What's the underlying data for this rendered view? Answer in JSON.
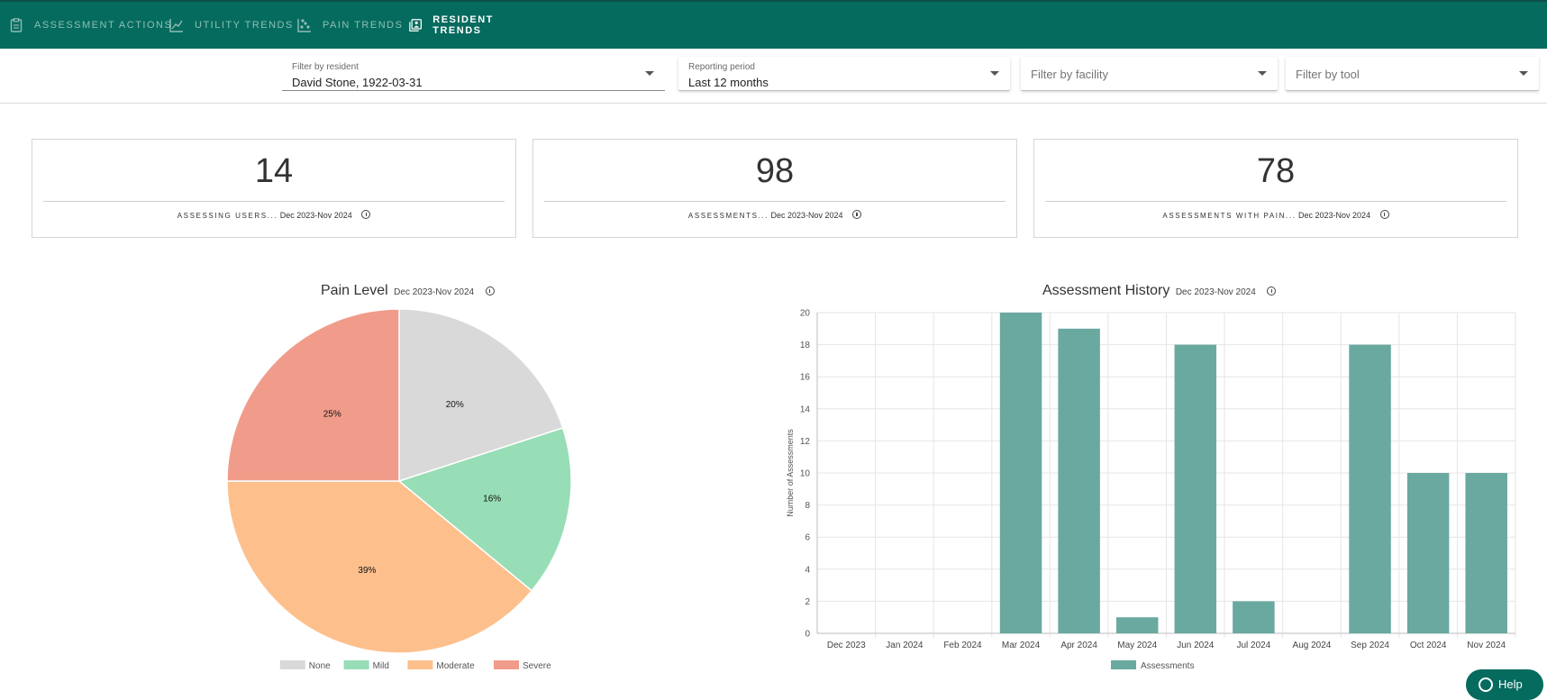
{
  "nav": {
    "tabs": [
      {
        "label": "Assessment Actions",
        "icon": "clipboard-icon"
      },
      {
        "label": "Utility Trends",
        "icon": "line-chart-icon"
      },
      {
        "label": "Pain Trends",
        "icon": "scatter-chart-icon"
      },
      {
        "label": "Resident Trends",
        "icon": "resident-portrait-icon",
        "active": true
      }
    ]
  },
  "filters": {
    "resident": {
      "label": "Filter by resident",
      "value": "David Stone, 1922-03-31"
    },
    "period": {
      "label": "Reporting period",
      "value": "Last 12 months"
    },
    "facility": {
      "placeholder": "Filter by facility"
    },
    "tool": {
      "placeholder": "Filter by tool"
    }
  },
  "stats": [
    {
      "value": "14",
      "label": "Assessing users...",
      "range": "Dec 2023-Nov 2024"
    },
    {
      "value": "98",
      "label": "Assessments...",
      "range": "Dec 2023-Nov 2024"
    },
    {
      "value": "78",
      "label": "Assessments with pain...",
      "range": "Dec 2023-Nov 2024"
    }
  ],
  "pain_chart": {
    "title": "Pain Level",
    "range": "Dec 2023-Nov 2024"
  },
  "history_chart": {
    "title": "Assessment History",
    "range": "Dec 2023-Nov 2024"
  },
  "help": {
    "label": "Help"
  },
  "chart_data": [
    {
      "type": "pie",
      "title": "Pain Level",
      "labels": [
        "None",
        "Mild",
        "Moderate",
        "Severe"
      ],
      "values": [
        20,
        16,
        39,
        25
      ],
      "value_labels": [
        "20%",
        "16%",
        "39%",
        "25%"
      ],
      "colors": [
        "#d9d9d9",
        "#97ddb5",
        "#fdc08d",
        "#f19c8b"
      ],
      "legend": "bottom"
    },
    {
      "type": "bar",
      "title": "Assessment History",
      "categories": [
        "Dec 2023",
        "Jan 2024",
        "Feb 2024",
        "Mar 2024",
        "Apr 2024",
        "May 2024",
        "Jun 2024",
        "Jul 2024",
        "Aug 2024",
        "Sep 2024",
        "Oct 2024",
        "Nov 2024"
      ],
      "series": [
        {
          "name": "Assessments",
          "values": [
            0,
            0,
            0,
            20,
            19,
            1,
            18,
            2,
            0,
            18,
            10,
            10
          ]
        }
      ],
      "ylabel": "Number of Assessments",
      "ylim": [
        0,
        20
      ],
      "yticks": [
        0,
        2,
        4,
        6,
        8,
        10,
        12,
        14,
        16,
        18,
        20
      ],
      "grid": true,
      "legend": "bottom",
      "color": "#69a9a0"
    }
  ]
}
